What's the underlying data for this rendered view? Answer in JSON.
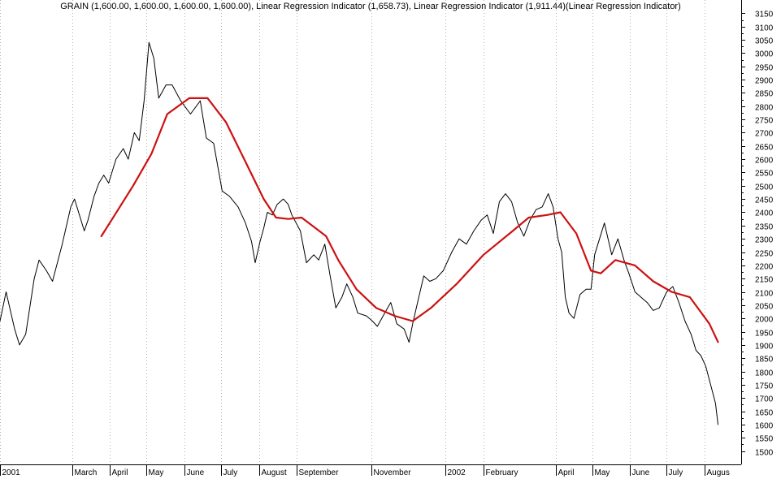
{
  "chart_data": {
    "type": "line",
    "title": "GRAIN (1,600.00, 1,600.00, 1,600.00, 1,600.00), Linear Regression Indicator (1,658.73), Linear Regression Indicator (1,911.44)(Linear Regression Indicator)",
    "xlabel": "",
    "ylabel": "",
    "ylim": [
      1450,
      3200
    ],
    "yticks": [
      1500,
      1550,
      1600,
      1650,
      1700,
      1750,
      1800,
      1850,
      1900,
      1950,
      2000,
      2050,
      2100,
      2150,
      2200,
      2250,
      2300,
      2350,
      2400,
      2450,
      2500,
      2550,
      2600,
      2650,
      2700,
      2750,
      2800,
      2850,
      2900,
      2950,
      3000,
      3050,
      3100,
      3150
    ],
    "xlim": [
      "2001-01-01",
      "2002-08-31"
    ],
    "xticks": [
      {
        "label": "2001",
        "date": "2001-01-01"
      },
      {
        "label": "March",
        "date": "2001-03-01"
      },
      {
        "label": "April",
        "date": "2001-04-01"
      },
      {
        "label": "May",
        "date": "2001-05-01"
      },
      {
        "label": "June",
        "date": "2001-06-01"
      },
      {
        "label": "July",
        "date": "2001-07-01"
      },
      {
        "label": "August",
        "date": "2001-08-01"
      },
      {
        "label": "September",
        "date": "2001-09-01"
      },
      {
        "label": "November",
        "date": "2001-11-01"
      },
      {
        "label": "2002",
        "date": "2002-01-01"
      },
      {
        "label": "February",
        "date": "2002-02-01"
      },
      {
        "label": "April",
        "date": "2002-04-01"
      },
      {
        "label": "May",
        "date": "2002-05-01"
      },
      {
        "label": "June",
        "date": "2002-06-01"
      },
      {
        "label": "July",
        "date": "2002-07-01"
      },
      {
        "label": "Augus",
        "date": "2002-08-01"
      }
    ],
    "grid": true,
    "series": [
      {
        "color": "#000000",
        "points": [
          [
            "2001-01-01",
            1990
          ],
          [
            "2001-01-06",
            2100
          ],
          [
            "2001-01-13",
            1960
          ],
          [
            "2001-01-17",
            1900
          ],
          [
            "2001-01-22",
            1940
          ],
          [
            "2001-01-29",
            2150
          ],
          [
            "2001-02-02",
            2220
          ],
          [
            "2001-02-08",
            2180
          ],
          [
            "2001-02-13",
            2140
          ],
          [
            "2001-02-21",
            2280
          ],
          [
            "2001-02-28",
            2420
          ],
          [
            "2001-03-03",
            2450
          ],
          [
            "2001-03-11",
            2330
          ],
          [
            "2001-03-14",
            2370
          ],
          [
            "2001-03-19",
            2460
          ],
          [
            "2001-03-23",
            2510
          ],
          [
            "2001-03-27",
            2540
          ],
          [
            "2001-03-31",
            2510
          ],
          [
            "2001-04-06",
            2600
          ],
          [
            "2001-04-12",
            2640
          ],
          [
            "2001-04-16",
            2600
          ],
          [
            "2001-04-21",
            2700
          ],
          [
            "2001-04-25",
            2670
          ],
          [
            "2001-04-29",
            2820
          ],
          [
            "2001-05-03",
            3040
          ],
          [
            "2001-05-07",
            2980
          ],
          [
            "2001-05-11",
            2830
          ],
          [
            "2001-05-17",
            2880
          ],
          [
            "2001-05-22",
            2880
          ],
          [
            "2001-05-29",
            2820
          ],
          [
            "2001-06-06",
            2770
          ],
          [
            "2001-06-14",
            2820
          ],
          [
            "2001-06-19",
            2680
          ],
          [
            "2001-06-25",
            2660
          ],
          [
            "2001-07-02",
            2480
          ],
          [
            "2001-07-08",
            2460
          ],
          [
            "2001-07-15",
            2420
          ],
          [
            "2001-07-21",
            2360
          ],
          [
            "2001-07-26",
            2290
          ],
          [
            "2001-07-29",
            2210
          ],
          [
            "2001-08-02",
            2290
          ],
          [
            "2001-08-05",
            2340
          ],
          [
            "2001-08-08",
            2400
          ],
          [
            "2001-08-12",
            2390
          ],
          [
            "2001-08-16",
            2430
          ],
          [
            "2001-08-21",
            2450
          ],
          [
            "2001-08-25",
            2430
          ],
          [
            "2001-08-28",
            2390
          ],
          [
            "2001-09-04",
            2330
          ],
          [
            "2001-09-09",
            2210
          ],
          [
            "2001-09-15",
            2240
          ],
          [
            "2001-09-19",
            2220
          ],
          [
            "2001-09-24",
            2280
          ],
          [
            "2001-09-28",
            2170
          ],
          [
            "2001-10-03",
            2040
          ],
          [
            "2001-10-08",
            2080
          ],
          [
            "2001-10-12",
            2130
          ],
          [
            "2001-10-17",
            2080
          ],
          [
            "2001-10-21",
            2020
          ],
          [
            "2001-10-28",
            2010
          ],
          [
            "2001-11-02",
            1990
          ],
          [
            "2001-11-06",
            1970
          ],
          [
            "2001-11-12",
            2020
          ],
          [
            "2001-11-17",
            2060
          ],
          [
            "2001-11-22",
            1980
          ],
          [
            "2001-11-28",
            1960
          ],
          [
            "2001-12-02",
            1910
          ],
          [
            "2001-12-05",
            1980
          ],
          [
            "2001-12-09",
            2060
          ],
          [
            "2001-12-14",
            2160
          ],
          [
            "2001-12-19",
            2140
          ],
          [
            "2001-12-24",
            2150
          ],
          [
            "2001-12-30",
            2180
          ],
          [
            "2002-01-06",
            2250
          ],
          [
            "2002-01-12",
            2300
          ],
          [
            "2002-01-18",
            2280
          ],
          [
            "2002-01-24",
            2330
          ],
          [
            "2002-01-30",
            2370
          ],
          [
            "2002-02-04",
            2390
          ],
          [
            "2002-02-09",
            2320
          ],
          [
            "2002-02-14",
            2440
          ],
          [
            "2002-02-19",
            2470
          ],
          [
            "2002-02-24",
            2440
          ],
          [
            "2002-03-01",
            2360
          ],
          [
            "2002-03-06",
            2310
          ],
          [
            "2002-03-11",
            2370
          ],
          [
            "2002-03-16",
            2410
          ],
          [
            "2002-03-21",
            2420
          ],
          [
            "2002-03-26",
            2470
          ],
          [
            "2002-03-30",
            2420
          ],
          [
            "2002-04-03",
            2300
          ],
          [
            "2002-04-06",
            2250
          ],
          [
            "2002-04-09",
            2080
          ],
          [
            "2002-04-12",
            2020
          ],
          [
            "2002-04-16",
            2000
          ],
          [
            "2002-04-21",
            2090
          ],
          [
            "2002-04-26",
            2110
          ],
          [
            "2002-04-30",
            2110
          ],
          [
            "2002-05-03",
            2240
          ],
          [
            "2002-05-07",
            2300
          ],
          [
            "2002-05-11",
            2360
          ],
          [
            "2002-05-17",
            2240
          ],
          [
            "2002-05-22",
            2300
          ],
          [
            "2002-05-27",
            2220
          ],
          [
            "2002-05-31",
            2170
          ],
          [
            "2002-06-05",
            2100
          ],
          [
            "2002-06-10",
            2080
          ],
          [
            "2002-06-15",
            2060
          ],
          [
            "2002-06-20",
            2030
          ],
          [
            "2002-06-25",
            2040
          ],
          [
            "2002-07-01",
            2100
          ],
          [
            "2002-07-06",
            2120
          ],
          [
            "2002-07-11",
            2060
          ],
          [
            "2002-07-16",
            1990
          ],
          [
            "2002-07-21",
            1940
          ],
          [
            "2002-07-25",
            1880
          ],
          [
            "2002-07-29",
            1860
          ],
          [
            "2002-08-02",
            1820
          ],
          [
            "2002-08-06",
            1750
          ],
          [
            "2002-08-10",
            1680
          ],
          [
            "2002-08-12",
            1600
          ]
        ]
      },
      {
        "color": "#cc1111",
        "points": [
          [
            "2001-03-25",
            2310
          ],
          [
            "2001-04-05",
            2390
          ],
          [
            "2001-04-20",
            2500
          ],
          [
            "2001-05-05",
            2620
          ],
          [
            "2001-05-18",
            2770
          ],
          [
            "2001-06-05",
            2830
          ],
          [
            "2001-06-20",
            2830
          ],
          [
            "2001-07-05",
            2740
          ],
          [
            "2001-07-20",
            2600
          ],
          [
            "2001-08-05",
            2450
          ],
          [
            "2001-08-15",
            2380
          ],
          [
            "2001-08-25",
            2375
          ],
          [
            "2001-09-05",
            2380
          ],
          [
            "2001-09-25",
            2310
          ],
          [
            "2001-10-05",
            2220
          ],
          [
            "2001-10-20",
            2110
          ],
          [
            "2001-11-05",
            2040
          ],
          [
            "2001-11-20",
            2010
          ],
          [
            "2001-12-05",
            1990
          ],
          [
            "2001-12-20",
            2040
          ],
          [
            "2002-01-10",
            2130
          ],
          [
            "2002-02-01",
            2240
          ],
          [
            "2002-02-25",
            2330
          ],
          [
            "2002-03-10",
            2380
          ],
          [
            "2002-03-25",
            2390
          ],
          [
            "2002-04-05",
            2400
          ],
          [
            "2002-04-18",
            2320
          ],
          [
            "2002-04-30",
            2180
          ],
          [
            "2002-05-08",
            2170
          ],
          [
            "2002-05-20",
            2220
          ],
          [
            "2002-06-05",
            2200
          ],
          [
            "2002-06-20",
            2140
          ],
          [
            "2002-07-05",
            2100
          ],
          [
            "2002-07-20",
            2080
          ],
          [
            "2002-08-05",
            1980
          ],
          [
            "2002-08-12",
            1911
          ]
        ]
      }
    ]
  }
}
